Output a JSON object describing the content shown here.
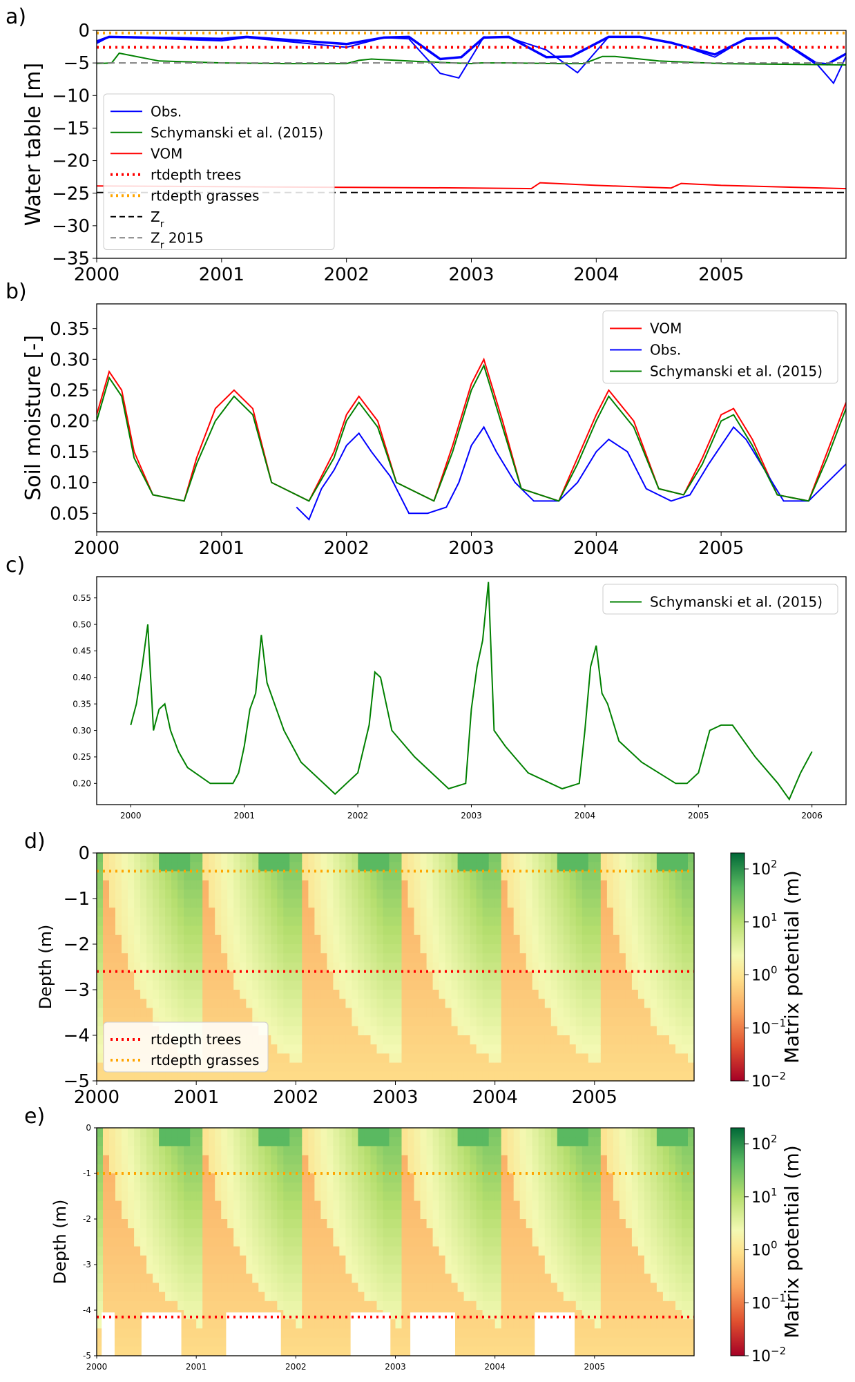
{
  "colors": {
    "obs": "#0000ff",
    "schymanski": "#008000",
    "vom": "#ff0000",
    "rt_trees": "#ff0000",
    "rt_grasses": "#ffa500",
    "zr": "#000000",
    "zr2015": "#808080"
  },
  "chart_data": [
    {
      "panel": "a)",
      "type": "line",
      "ylabel": "Water table [m]",
      "xlabel": "",
      "ylim": [
        -35,
        0
      ],
      "xlim": [
        2000.0,
        2006.0
      ],
      "yticks": [
        "0",
        "−5",
        "−10",
        "−15",
        "−20",
        "−25",
        "−30",
        "−35"
      ],
      "xticks": [
        "2000",
        "2001",
        "2002",
        "2003",
        "2004",
        "2005"
      ],
      "legend": "lower-left",
      "series": [
        {
          "name": "Obs.",
          "style": "solid",
          "x": [
            2000.0,
            2000.1,
            2001.0,
            2001.2,
            2002.0,
            2002.3,
            2002.5,
            2002.75,
            2002.92,
            2003.1,
            2003.3,
            2003.6,
            2003.8,
            2004.1,
            2004.35,
            2004.6,
            2004.95,
            2005.2,
            2005.45,
            2005.75,
            2005.85,
            2006.0
          ],
          "y": [
            -1.7,
            -1.0,
            -1.3,
            -1.0,
            -2.1,
            -1.1,
            -1.0,
            -4.4,
            -4.1,
            -1.1,
            -1.0,
            -4.1,
            -4.0,
            -1.0,
            -1.0,
            -1.9,
            -3.7,
            -1.3,
            -1.2,
            -5.0,
            -5.2,
            -3.6
          ]
        },
        {
          "name": "Obs.",
          "style": "solid",
          "x": [
            2000.0,
            2000.1,
            2001.0,
            2001.2,
            2002.0,
            2002.3,
            2002.5,
            2002.75,
            2002.9,
            2003.1,
            2003.3,
            2003.6,
            2003.85,
            2004.1,
            2004.35,
            2004.6,
            2004.95,
            2005.2,
            2005.45,
            2005.75,
            2005.9,
            2006.0
          ],
          "y": [
            -2.0,
            -1.0,
            -1.6,
            -1.1,
            -2.6,
            -1.1,
            -1.3,
            -6.6,
            -7.3,
            -1.0,
            -1.1,
            -3.0,
            -6.5,
            -1.0,
            -1.0,
            -1.8,
            -4.1,
            -1.2,
            -1.1,
            -4.8,
            -8.1,
            -4.0
          ]
        },
        {
          "name": "Schymanski et al. (2015)",
          "x": [
            2000.0,
            2000.12,
            2000.18,
            2000.5,
            2001.0,
            2001.5,
            2002.0,
            2002.1,
            2002.2,
            2002.6,
            2003.0,
            2003.08,
            2003.3,
            2003.7,
            2003.9,
            2004.05,
            2004.15,
            2004.5,
            2005.0,
            2005.5,
            2006.0
          ],
          "y": [
            -5.1,
            -5.0,
            -3.5,
            -4.7,
            -5.0,
            -5.1,
            -5.1,
            -4.6,
            -4.4,
            -4.8,
            -5.1,
            -5.0,
            -5.0,
            -5.1,
            -5.1,
            -4.0,
            -4.0,
            -4.7,
            -5.1,
            -5.2,
            -5.3
          ]
        },
        {
          "name": "VOM",
          "x": [
            2000.0,
            2001.0,
            2002.0,
            2003.0,
            2003.48,
            2003.55,
            2004.0,
            2004.6,
            2004.68,
            2005.0,
            2006.0
          ],
          "y": [
            -23.9,
            -24.0,
            -24.1,
            -24.2,
            -24.3,
            -23.4,
            -23.8,
            -24.2,
            -23.5,
            -23.8,
            -24.3
          ]
        },
        {
          "name": "rtdepth trees",
          "style": "dotted",
          "x": [
            2000.0,
            2006.0
          ],
          "y": [
            -2.6,
            -2.6
          ]
        },
        {
          "name": "rtdepth grasses",
          "style": "dotted",
          "x": [
            2000.0,
            2006.0
          ],
          "y": [
            -0.4,
            -0.4
          ]
        },
        {
          "name": "Z_r",
          "style": "dashed",
          "x": [
            2000.0,
            2006.0
          ],
          "y": [
            -24.9,
            -24.9
          ]
        },
        {
          "name": "Z_r 2015",
          "style": "dashed",
          "x": [
            2000.0,
            2006.0
          ],
          "y": [
            -5.0,
            -5.0
          ]
        }
      ]
    },
    {
      "panel": "b)",
      "type": "line",
      "ylabel": "Soil moisture [-]",
      "xlabel": "",
      "ylim": [
        0.02,
        0.39
      ],
      "xlim": [
        2000.0,
        2006.0
      ],
      "yticks": [
        "0.05",
        "0.10",
        "0.15",
        "0.20",
        "0.25",
        "0.30",
        "0.35"
      ],
      "xticks": [
        "2000",
        "2001",
        "2002",
        "2003",
        "2004",
        "2005"
      ],
      "legend": "top-right",
      "series": [
        {
          "name": "VOM",
          "x": [
            2000.0,
            2000.1,
            2000.2,
            2000.3,
            2000.45,
            2000.7,
            2000.8,
            2000.95,
            2001.1,
            2001.25,
            2001.4,
            2001.7,
            2001.9,
            2002.0,
            2002.1,
            2002.25,
            2002.4,
            2002.7,
            2002.85,
            2003.0,
            2003.1,
            2003.25,
            2003.4,
            2003.7,
            2003.85,
            2004.0,
            2004.1,
            2004.3,
            2004.5,
            2004.7,
            2004.85,
            2005.0,
            2005.1,
            2005.25,
            2005.45,
            2005.7,
            2005.85,
            2006.0
          ],
          "y": [
            0.21,
            0.28,
            0.25,
            0.15,
            0.08,
            0.07,
            0.14,
            0.22,
            0.25,
            0.22,
            0.1,
            0.07,
            0.15,
            0.21,
            0.24,
            0.2,
            0.1,
            0.07,
            0.16,
            0.26,
            0.3,
            0.2,
            0.09,
            0.07,
            0.14,
            0.21,
            0.25,
            0.2,
            0.09,
            0.08,
            0.14,
            0.21,
            0.22,
            0.17,
            0.08,
            0.07,
            0.15,
            0.23
          ]
        },
        {
          "name": "Obs.",
          "x": [
            2001.6,
            2001.7,
            2001.8,
            2001.9,
            2002.0,
            2002.1,
            2002.2,
            2002.35,
            2002.5,
            2002.65,
            2002.8,
            2002.9,
            2003.0,
            2003.1,
            2003.2,
            2003.35,
            2003.5,
            2003.7,
            2003.85,
            2004.0,
            2004.1,
            2004.25,
            2004.4,
            2004.6,
            2004.75,
            2004.9,
            2005.0,
            2005.1,
            2005.2,
            2005.35,
            2005.5,
            2005.7,
            2005.85,
            2006.0
          ],
          "y": [
            0.06,
            0.04,
            0.09,
            0.12,
            0.16,
            0.18,
            0.15,
            0.11,
            0.05,
            0.05,
            0.06,
            0.1,
            0.16,
            0.19,
            0.15,
            0.1,
            0.07,
            0.07,
            0.1,
            0.15,
            0.17,
            0.15,
            0.09,
            0.07,
            0.08,
            0.13,
            0.16,
            0.19,
            0.17,
            0.12,
            0.07,
            0.07,
            0.1,
            0.13
          ]
        },
        {
          "name": "Schymanski et al. (2015)",
          "x": [
            2000.0,
            2000.1,
            2000.2,
            2000.3,
            2000.45,
            2000.7,
            2000.8,
            2000.95,
            2001.1,
            2001.25,
            2001.4,
            2001.7,
            2001.9,
            2002.0,
            2002.1,
            2002.25,
            2002.4,
            2002.7,
            2002.85,
            2003.0,
            2003.1,
            2003.25,
            2003.4,
            2003.7,
            2003.85,
            2004.0,
            2004.1,
            2004.3,
            2004.5,
            2004.7,
            2004.85,
            2005.0,
            2005.1,
            2005.25,
            2005.45,
            2005.7,
            2005.85,
            2006.0
          ],
          "y": [
            0.2,
            0.27,
            0.24,
            0.14,
            0.08,
            0.07,
            0.13,
            0.2,
            0.24,
            0.21,
            0.1,
            0.07,
            0.14,
            0.2,
            0.23,
            0.19,
            0.1,
            0.07,
            0.15,
            0.25,
            0.29,
            0.19,
            0.09,
            0.07,
            0.13,
            0.2,
            0.24,
            0.19,
            0.09,
            0.08,
            0.13,
            0.2,
            0.21,
            0.16,
            0.08,
            0.07,
            0.14,
            0.22
          ]
        }
      ]
    },
    {
      "panel": "c)",
      "type": "line",
      "ylabel": "",
      "xlabel": "",
      "ylim": [
        0.16,
        0.59
      ],
      "xlim": [
        1999.7,
        2006.3
      ],
      "yticks": [
        "0.20",
        "0.25",
        "0.30",
        "0.35",
        "0.40",
        "0.45",
        "0.50",
        "0.55"
      ],
      "xticks": [
        "2000",
        "2001",
        "2002",
        "2003",
        "2004",
        "2005",
        "2006"
      ],
      "legend": "top-right",
      "series": [
        {
          "name": "Schymanski et al. (2015)",
          "x": [
            2000.0,
            2000.05,
            2000.1,
            2000.15,
            2000.2,
            2000.25,
            2000.3,
            2000.35,
            2000.42,
            2000.5,
            2000.7,
            2000.9,
            2000.95,
            2001.0,
            2001.05,
            2001.1,
            2001.15,
            2001.2,
            2001.35,
            2001.5,
            2001.8,
            2001.95,
            2002.0,
            2002.1,
            2002.15,
            2002.2,
            2002.3,
            2002.5,
            2002.8,
            2002.95,
            2003.0,
            2003.05,
            2003.1,
            2003.15,
            2003.2,
            2003.3,
            2003.5,
            2003.8,
            2003.95,
            2004.0,
            2004.05,
            2004.1,
            2004.15,
            2004.2,
            2004.3,
            2004.5,
            2004.8,
            2004.9,
            2005.0,
            2005.1,
            2005.2,
            2005.3,
            2005.5,
            2005.7,
            2005.8,
            2005.9,
            2006.0
          ],
          "y": [
            0.31,
            0.35,
            0.42,
            0.5,
            0.3,
            0.34,
            0.35,
            0.3,
            0.26,
            0.23,
            0.2,
            0.2,
            0.22,
            0.27,
            0.34,
            0.37,
            0.48,
            0.39,
            0.3,
            0.24,
            0.18,
            0.21,
            0.22,
            0.31,
            0.41,
            0.4,
            0.3,
            0.25,
            0.19,
            0.2,
            0.34,
            0.42,
            0.47,
            0.58,
            0.3,
            0.27,
            0.22,
            0.19,
            0.2,
            0.3,
            0.42,
            0.46,
            0.37,
            0.35,
            0.28,
            0.24,
            0.2,
            0.2,
            0.22,
            0.3,
            0.31,
            0.31,
            0.25,
            0.2,
            0.17,
            0.22,
            0.26
          ]
        }
      ]
    },
    {
      "panel": "d)",
      "type": "heatmap",
      "ylabel": "Depth (m)",
      "xlabel": "",
      "ylim": [
        -5,
        0
      ],
      "xlim": [
        2000.0,
        2006.0
      ],
      "yticks": [
        "0",
        "−1",
        "−2",
        "−3",
        "−4",
        "−5"
      ],
      "xticks": [
        "2000",
        "2001",
        "2002",
        "2003",
        "2004",
        "2005"
      ],
      "colorbar_label": "Matrix potential (m)",
      "colorbar_scale": "log",
      "colorbar_range": [
        0.01,
        200
      ],
      "colorbar_ticks": [
        "10−2",
        "10−1",
        "100",
        "101",
        "102"
      ],
      "colormap": "RdYlGn",
      "legend": "lower-left",
      "series": [
        {
          "name": "rtdepth trees",
          "style": "dotted",
          "y": -2.6
        },
        {
          "name": "rtdepth grasses",
          "style": "dotted",
          "y": -0.4
        }
      ]
    },
    {
      "panel": "e)",
      "type": "heatmap",
      "ylabel": "Depth (m)",
      "xlabel": "",
      "ylim": [
        -5,
        0
      ],
      "xlim": [
        2000.0,
        2006.0
      ],
      "yticks": [
        "0",
        "-1",
        "-2",
        "-3",
        "-4",
        "-5"
      ],
      "xticks": [
        "2000",
        "2001",
        "2002",
        "2003",
        "2004",
        "2005"
      ],
      "colorbar_label": "Matrix potential (m)",
      "colorbar_scale": "log",
      "colorbar_range": [
        0.01,
        200
      ],
      "colorbar_ticks": [
        "10−2",
        "10−1",
        "100",
        "101",
        "102"
      ],
      "colormap": "RdYlGn",
      "series": [
        {
          "name": "",
          "style": "dotted",
          "color": "rt_trees",
          "y": -4.15
        },
        {
          "name": "",
          "style": "dotted",
          "color": "rt_grasses",
          "y": -1.0
        }
      ]
    }
  ],
  "legends": {
    "a": [
      "Obs.",
      "Schymanski et al. (2015)",
      "VOM",
      "rtdepth trees",
      "rtdepth grasses",
      "Z",
      "Z"
    ],
    "a_sub": "r",
    "a_suffix": "2015",
    "b": [
      "VOM",
      "Obs.",
      "Schymanski et al. (2015)"
    ],
    "c": [
      "Schymanski et al. (2015)"
    ],
    "d": [
      "rtdepth trees",
      "rtdepth grasses"
    ]
  },
  "panel_labels": [
    "a)",
    "b)",
    "c)",
    "d)",
    "e)"
  ]
}
